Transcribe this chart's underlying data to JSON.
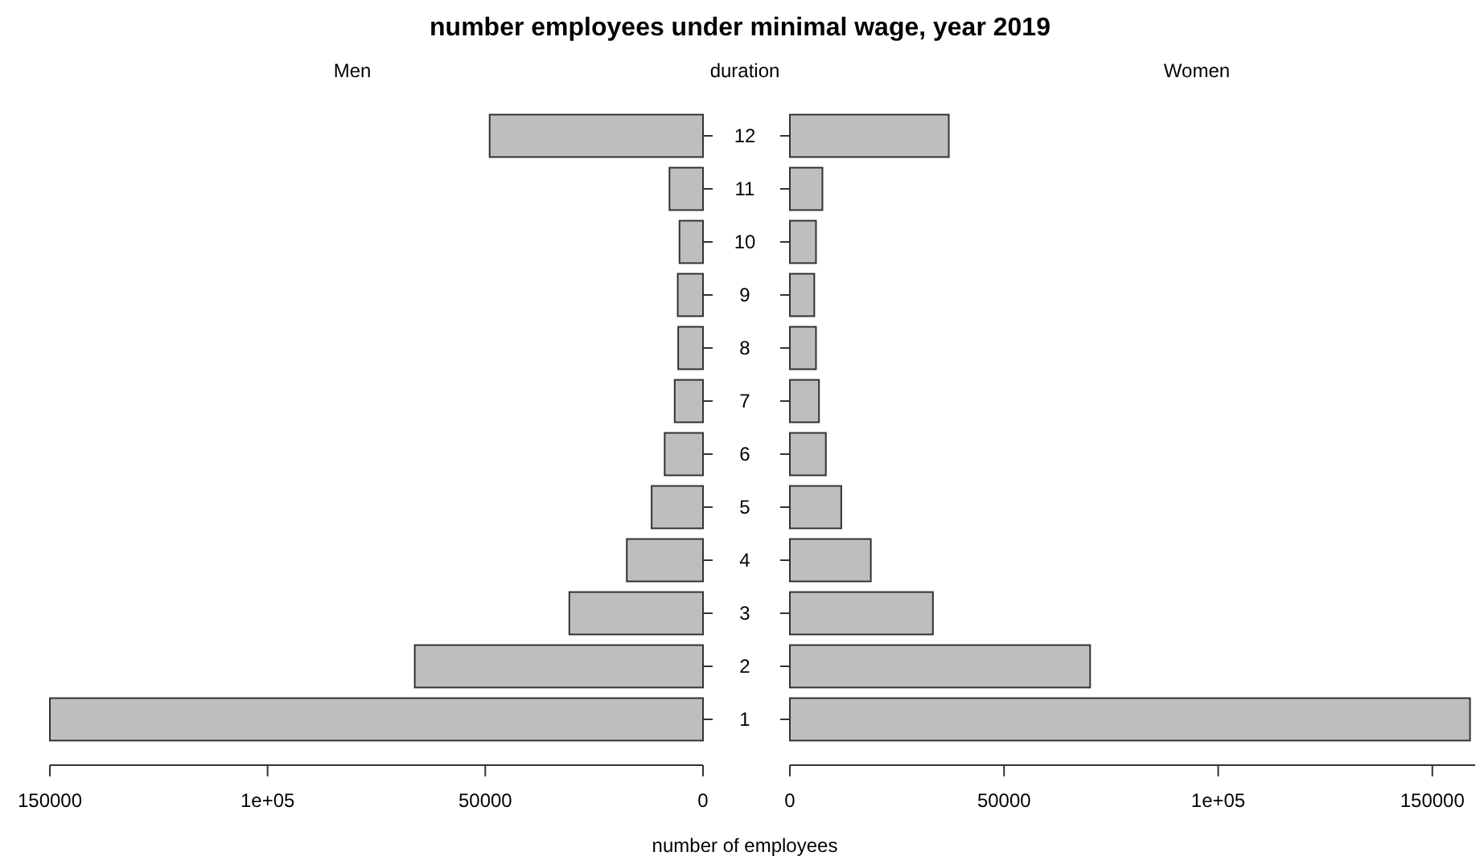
{
  "chart_data": [
    {
      "type": "bar",
      "orientation": "horizontal",
      "title": "number employees under minimal wage, year 2019",
      "subtitle": "Men",
      "categories": [
        "12",
        "11",
        "10",
        "9",
        "8",
        "7",
        "6",
        "5",
        "4",
        "3",
        "2",
        "1"
      ],
      "values": [
        49000,
        7700,
        5400,
        5800,
        5700,
        6500,
        8800,
        11800,
        17500,
        30700,
        66200,
        150000
      ],
      "color": "#bebebe",
      "xlim": [
        150000,
        0
      ],
      "xticks": [
        150000,
        {
          "value": 100000,
          "label": "1e+05"
        },
        50000,
        0
      ],
      "tick_labels": "x"
    },
    {
      "type": "bar",
      "orientation": "horizontal",
      "title": "Women",
      "ylabel": "duration",
      "xlabel": "number of employees",
      "categories": [
        "12",
        "11",
        "10",
        "9",
        "8",
        "7",
        "6",
        "5",
        "4",
        "3",
        "2",
        "1"
      ],
      "values": [
        37100,
        7600,
        6100,
        5700,
        6100,
        6800,
        8400,
        12000,
        18900,
        33400,
        70100,
        158800
      ],
      "color": "#bebebe",
      "xlim": [
        0,
        160000
      ],
      "xticks": [
        0,
        50000,
        {
          "value": 100000,
          "label": "1e+05"
        },
        150000
      ]
    }
  ]
}
